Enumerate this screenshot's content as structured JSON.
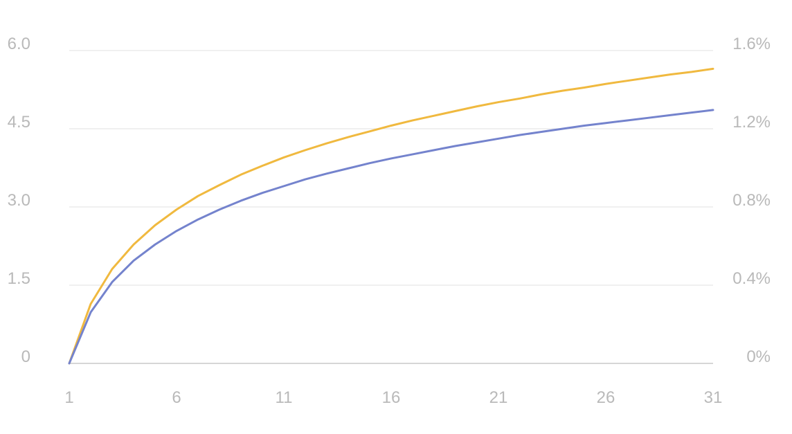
{
  "chart_data": {
    "type": "line",
    "title": "",
    "xlabel": "",
    "ylabel": "",
    "y2label": "",
    "grid": true,
    "legend": "none",
    "xlim": [
      1,
      31
    ],
    "ylim": [
      0,
      6.0
    ],
    "y2lim": [
      0,
      1.6
    ],
    "x_ticks": [
      "1",
      "6",
      "11",
      "16",
      "21",
      "26",
      "31"
    ],
    "x_tick_values": [
      1,
      6,
      11,
      16,
      21,
      26,
      31
    ],
    "y_ticks": [
      "0",
      "1.5",
      "3.0",
      "4.5",
      "6.0"
    ],
    "y_tick_values": [
      0,
      1.5,
      3.0,
      4.5,
      6.0
    ],
    "y2_ticks": [
      "0%",
      "0.4%",
      "0.8%",
      "1.2%",
      "1.6%"
    ],
    "x": [
      1,
      2,
      3,
      4,
      5,
      6,
      7,
      8,
      9,
      10,
      11,
      12,
      13,
      14,
      15,
      16,
      17,
      18,
      19,
      20,
      21,
      22,
      23,
      24,
      25,
      26,
      27,
      28,
      29,
      30,
      31
    ],
    "series": [
      {
        "color": "#f0b93f",
        "values": [
          0,
          1.14,
          1.81,
          2.28,
          2.65,
          2.95,
          3.21,
          3.42,
          3.62,
          3.79,
          3.95,
          4.09,
          4.22,
          4.34,
          4.45,
          4.56,
          4.66,
          4.75,
          4.84,
          4.93,
          5.01,
          5.08,
          5.16,
          5.23,
          5.29,
          5.36,
          5.42,
          5.48,
          5.54,
          5.59,
          5.65
        ]
      },
      {
        "color": "#7483cd",
        "values": [
          0,
          0.98,
          1.56,
          1.97,
          2.28,
          2.54,
          2.76,
          2.95,
          3.12,
          3.27,
          3.4,
          3.53,
          3.64,
          3.74,
          3.84,
          3.93,
          4.01,
          4.09,
          4.17,
          4.24,
          4.31,
          4.38,
          4.44,
          4.5,
          4.56,
          4.61,
          4.66,
          4.71,
          4.76,
          4.81,
          4.86
        ]
      }
    ]
  }
}
